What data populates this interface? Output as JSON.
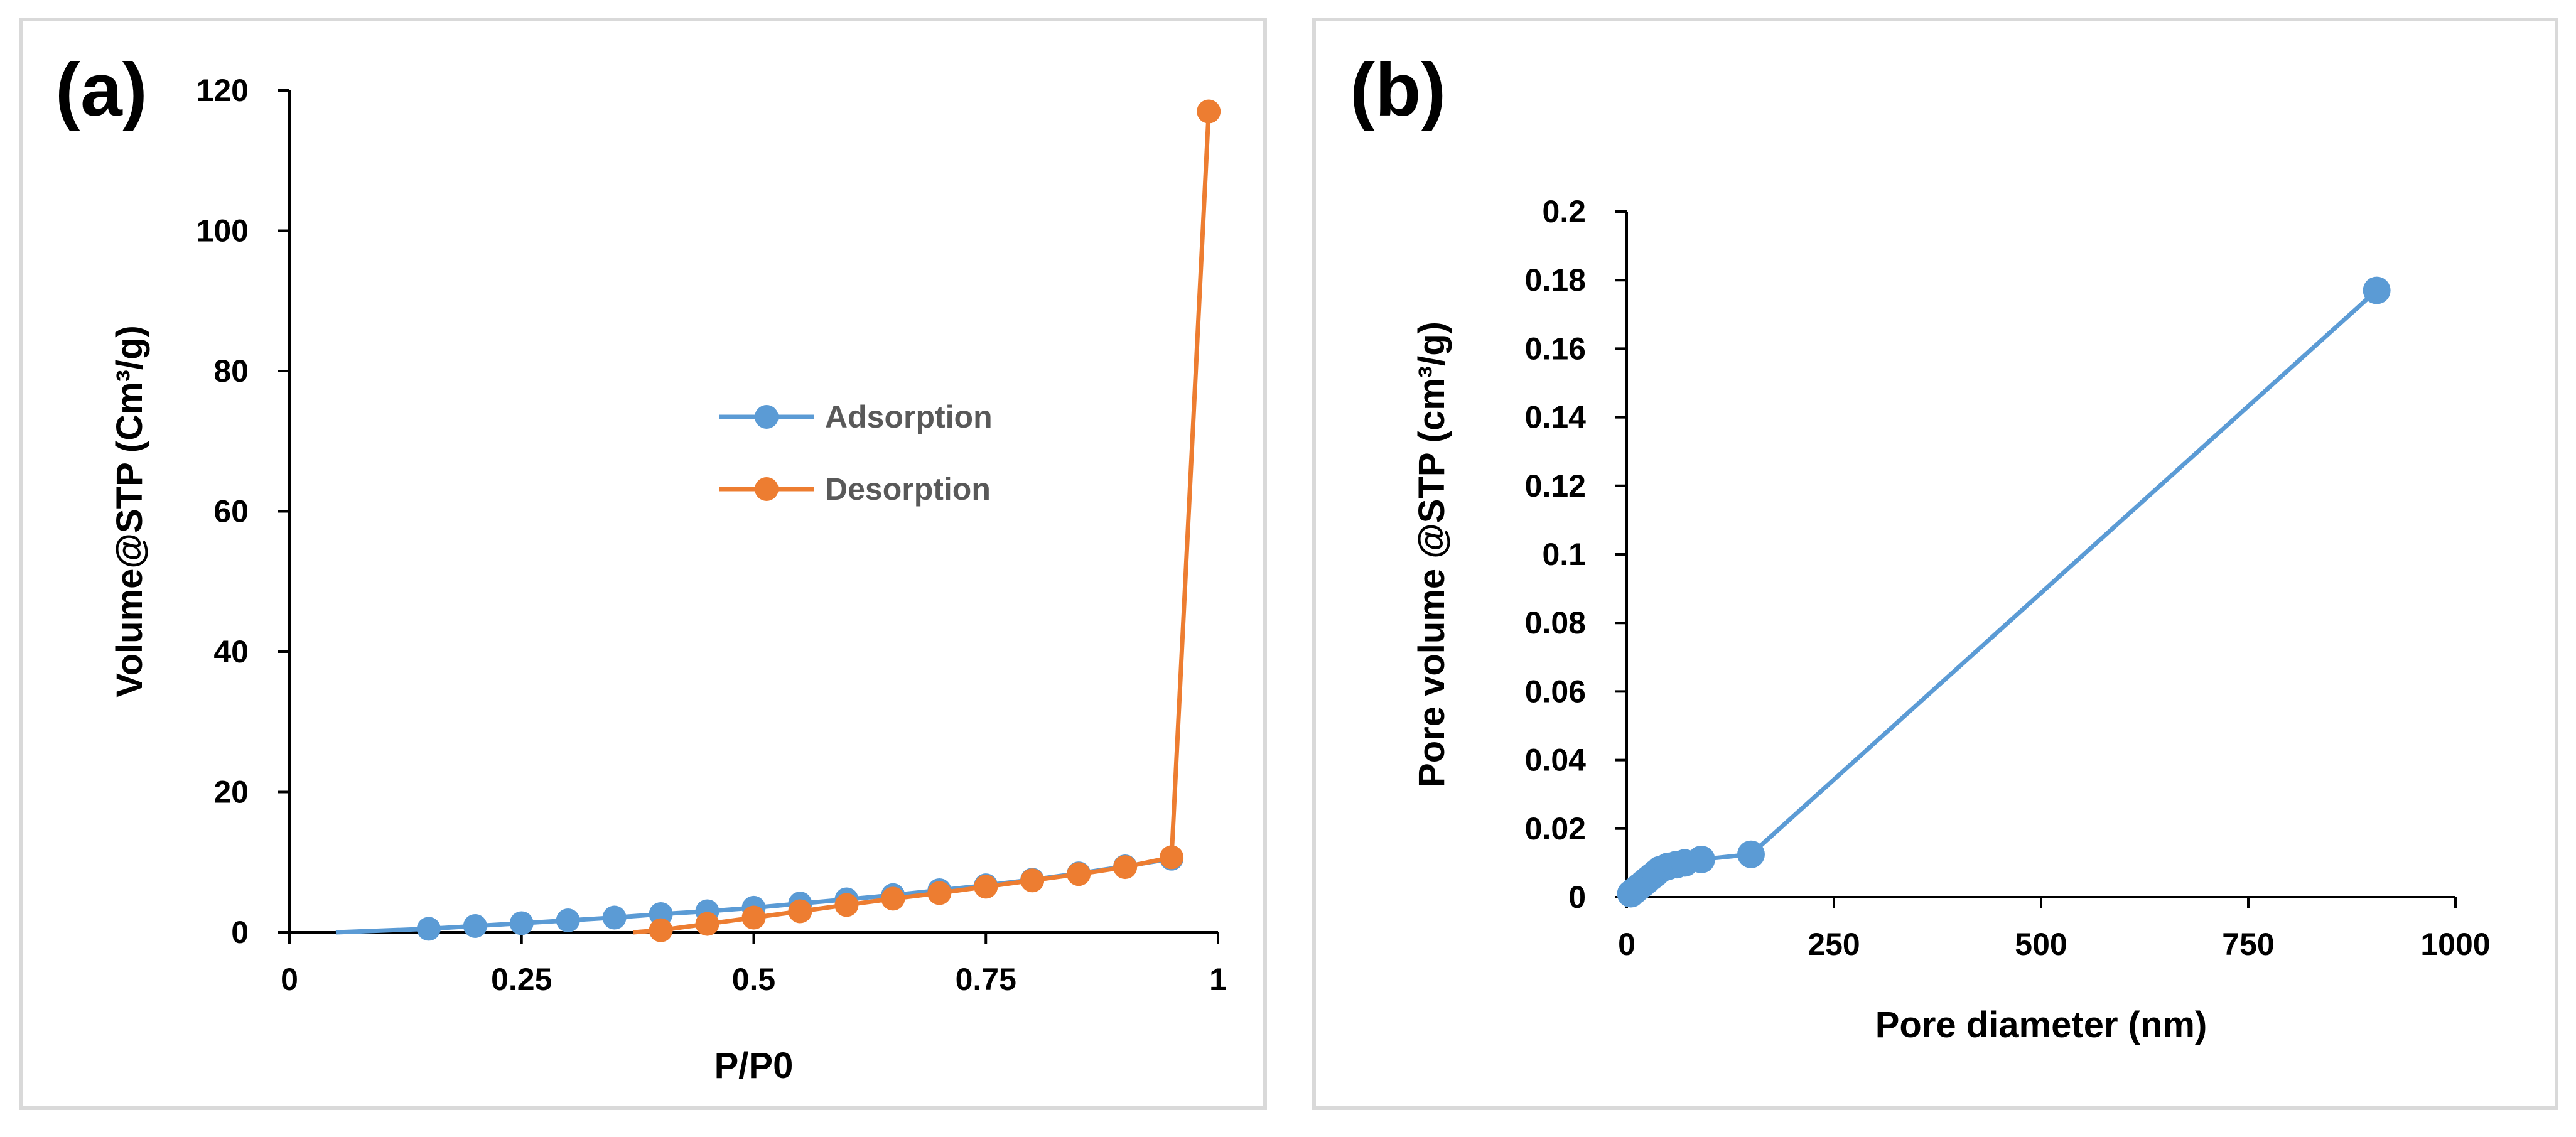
{
  "figure": {
    "panels": [
      "(a)",
      "(b)"
    ]
  },
  "colors": {
    "adsorption": "#5b9bd5",
    "desorption": "#ed7d31",
    "axis": "#000000",
    "frame": "#d9d9d9"
  },
  "chart_data": [
    {
      "id": "a",
      "panel_label": "(a)",
      "type": "line",
      "xlabel": "P/P0",
      "ylabel": "Volume@STP (Cm³/g)",
      "xlim": [
        0,
        1
      ],
      "ylim": [
        0,
        120
      ],
      "xticks": [
        0,
        0.25,
        0.5,
        0.75,
        1
      ],
      "xtick_labels": [
        "0",
        "0.25",
        "0.5",
        "0.75",
        "1"
      ],
      "yticks": [
        0,
        20,
        40,
        60,
        80,
        100,
        120
      ],
      "ytick_labels": [
        "0",
        "20",
        "40",
        "60",
        "80",
        "100",
        "120"
      ],
      "legend_position": "center",
      "series": [
        {
          "name": "Adsorption",
          "color": "#5b9bd5",
          "line_start": [
            0.05,
            0
          ],
          "x": [
            0.15,
            0.2,
            0.25,
            0.3,
            0.35,
            0.4,
            0.45,
            0.5,
            0.55,
            0.6,
            0.65,
            0.7,
            0.75,
            0.8,
            0.85,
            0.9,
            0.95
          ],
          "y": [
            0.5,
            0.9,
            1.3,
            1.7,
            2.1,
            2.6,
            3.0,
            3.5,
            4.1,
            4.7,
            5.3,
            6.0,
            6.7,
            7.5,
            8.4,
            9.4,
            10.5
          ]
        },
        {
          "name": "Desorption",
          "color": "#ed7d31",
          "line_start": [
            0.37,
            0
          ],
          "x": [
            0.4,
            0.45,
            0.5,
            0.55,
            0.6,
            0.65,
            0.7,
            0.75,
            0.8,
            0.85,
            0.9,
            0.95,
            0.99
          ],
          "y": [
            0.3,
            1.2,
            2.1,
            3.0,
            3.9,
            4.8,
            5.6,
            6.5,
            7.4,
            8.3,
            9.3,
            10.7,
            117
          ]
        }
      ]
    },
    {
      "id": "b",
      "panel_label": "(b)",
      "type": "line",
      "xlabel": "Pore diameter (nm)",
      "ylabel": "Pore volume @STP (cm³/g)",
      "xlim": [
        0,
        1000
      ],
      "ylim": [
        0,
        0.2
      ],
      "xticks": [
        0,
        250,
        500,
        750,
        1000
      ],
      "xtick_labels": [
        "0",
        "250",
        "500",
        "750",
        "1000"
      ],
      "yticks": [
        0,
        0.02,
        0.04,
        0.06,
        0.08,
        0.1,
        0.12,
        0.14,
        0.16,
        0.18,
        0.2
      ],
      "ytick_labels": [
        "0",
        "0.02",
        "0.04",
        "0.06",
        "0.08",
        "0.1",
        "0.12",
        "0.14",
        "0.16",
        "0.18",
        "0.2"
      ],
      "series": [
        {
          "name": "Pore volume",
          "color": "#5b9bd5",
          "x": [
            5,
            10,
            15,
            20,
            25,
            30,
            35,
            40,
            50,
            60,
            70,
            90,
            150,
            905
          ],
          "y": [
            0.001,
            0.002,
            0.003,
            0.004,
            0.005,
            0.006,
            0.007,
            0.008,
            0.009,
            0.0095,
            0.01,
            0.011,
            0.0125,
            0.177
          ]
        }
      ]
    }
  ]
}
